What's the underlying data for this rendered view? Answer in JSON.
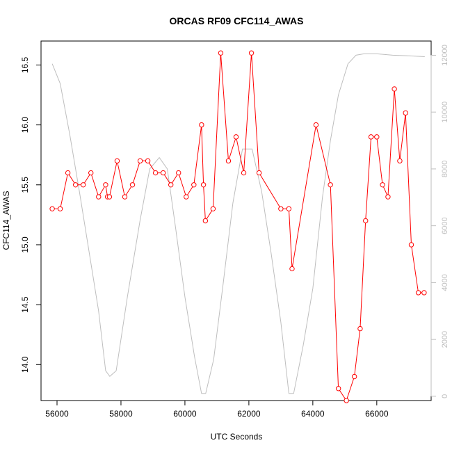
{
  "chart_data": {
    "type": "line",
    "title": "ORCAS RF09 CFC114_AWAS",
    "xlabel": "UTC Seconds",
    "ylabel": "CFC114_AWAS",
    "xlim": [
      55500,
      67700
    ],
    "ylim": [
      13.7,
      16.7
    ],
    "x_ticks": [
      "56000",
      "58000",
      "60000",
      "62000",
      "64000",
      "66000"
    ],
    "y_ticks": [
      "14.0",
      "14.5",
      "15.0",
      "15.5",
      "16.0",
      "16.5"
    ],
    "y2lim": [
      -150,
      12500
    ],
    "y2_ticks": [
      "0",
      "2000",
      "4000",
      "6000",
      "8000",
      "10000",
      "12000"
    ],
    "colors": {
      "primary": "#ff0000",
      "secondary": "#bebebe",
      "axis": "#000000",
      "secondary_axis": "#bebebe"
    },
    "series": [
      {
        "axis": "left",
        "color": "#ff0000",
        "marker": "open-circle",
        "x": [
          55850,
          56100,
          56340,
          56580,
          56820,
          57060,
          57300,
          57520,
          57580,
          57640,
          57880,
          58120,
          58360,
          58600,
          58840,
          59080,
          59320,
          59560,
          59800,
          60040,
          60280,
          60520,
          60580,
          60640,
          60880,
          61120,
          61360,
          61600,
          61840,
          62080,
          62320,
          63000,
          63250,
          63350,
          64100,
          64550,
          64800,
          65050,
          65300,
          65480,
          65650,
          65820,
          66000,
          66180,
          66350,
          66550,
          66720,
          66900,
          67080,
          67300,
          67480
        ],
        "y": [
          15.3,
          15.3,
          15.6,
          15.5,
          15.5,
          15.6,
          15.4,
          15.5,
          15.4,
          15.4,
          15.7,
          15.4,
          15.5,
          15.7,
          15.7,
          15.6,
          15.6,
          15.5,
          15.6,
          15.4,
          15.5,
          16.0,
          15.5,
          15.2,
          15.3,
          16.6,
          15.7,
          15.9,
          15.6,
          16.6,
          15.6,
          15.3,
          15.3,
          14.8,
          16.0,
          15.5,
          13.8,
          13.7,
          13.9,
          14.3,
          15.2,
          15.9,
          15.9,
          15.5,
          15.4,
          16.3,
          15.7,
          16.1,
          15.0,
          14.6,
          14.6
        ]
      },
      {
        "axis": "right",
        "color": "#bebebe",
        "x": [
          55850,
          56100,
          56400,
          56700,
          57000,
          57300,
          57520,
          57650,
          57850,
          58200,
          58600,
          58900,
          59200,
          59450,
          59700,
          60000,
          60300,
          60520,
          60650,
          60900,
          61200,
          61500,
          61800,
          62100,
          62400,
          62700,
          63000,
          63250,
          63400,
          63700,
          64000,
          64300,
          64550,
          64800,
          65100,
          65350,
          65600,
          66000,
          66500,
          67000,
          67500
        ],
        "y": [
          11700,
          11000,
          9200,
          7200,
          5100,
          3000,
          900,
          700,
          900,
          3500,
          6200,
          8000,
          8400,
          8000,
          6000,
          3500,
          1400,
          100,
          100,
          1300,
          4000,
          6800,
          8700,
          8700,
          7200,
          5000,
          2600,
          100,
          100,
          1800,
          3800,
          7000,
          9000,
          10600,
          11700,
          12000,
          12050,
          12050,
          12000,
          11980,
          11950
        ]
      }
    ]
  }
}
